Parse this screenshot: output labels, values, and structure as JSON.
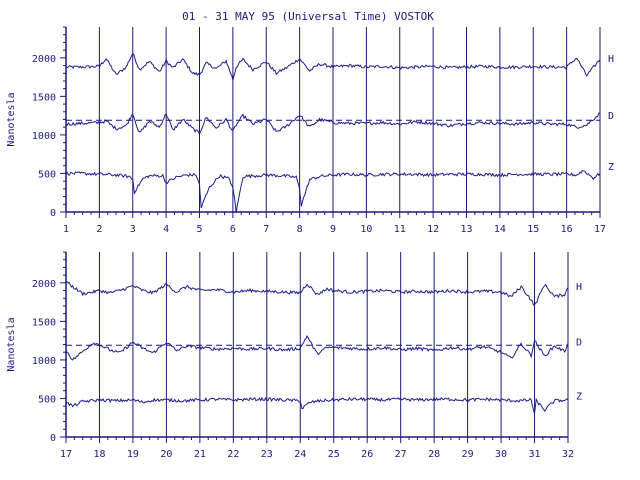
{
  "title": "01 - 31 MAY 95 (Universal Time) VOSTOK",
  "colors": {
    "ink": "#1a1a7a",
    "trace": "#1c1c8c",
    "background": "#ffffff"
  },
  "chart_data": [
    {
      "type": "line",
      "panel": "top",
      "ylabel": "Nanotesla",
      "ylim": [
        0,
        2400
      ],
      "y_ticks": [
        "0",
        "500",
        "1000",
        "1500",
        "2000"
      ],
      "y_tick_values": [
        0,
        500,
        1000,
        1500,
        2000
      ],
      "xlim": [
        1,
        17
      ],
      "x_ticks": [
        "1",
        "2",
        "3",
        "4",
        "5",
        "6",
        "7",
        "8",
        "9",
        "10",
        "11",
        "12",
        "13",
        "14",
        "15",
        "16",
        "17"
      ],
      "grid": "vertical lines at each day",
      "reference_line_D": 1190,
      "series": [
        {
          "name": "H",
          "x": [
            1,
            1.5,
            2,
            2.2,
            2.5,
            2.8,
            3,
            3.2,
            3.5,
            3.8,
            4,
            4.2,
            4.5,
            4.8,
            5,
            5.2,
            5.5,
            5.8,
            6,
            6.1,
            6.3,
            6.6,
            7,
            7.3,
            7.6,
            8,
            8.3,
            8.6,
            9,
            9.5,
            10,
            10.5,
            11,
            11.5,
            12,
            12.5,
            13,
            13.5,
            14,
            14.5,
            15,
            15.5,
            16,
            16.3,
            16.6,
            17
          ],
          "values": [
            1880,
            1880,
            1890,
            1990,
            1780,
            1880,
            2060,
            1850,
            1950,
            1820,
            1960,
            1870,
            1980,
            1800,
            1780,
            1930,
            1860,
            1960,
            1720,
            1880,
            1980,
            1850,
            1950,
            1800,
            1870,
            1990,
            1830,
            1920,
            1880,
            1900,
            1880,
            1890,
            1870,
            1880,
            1890,
            1870,
            1880,
            1890,
            1880,
            1880,
            1890,
            1880,
            1880,
            2000,
            1770,
            1980
          ]
        },
        {
          "name": "D",
          "x": [
            1,
            1.5,
            2,
            2.2,
            2.5,
            2.8,
            3,
            3.2,
            3.5,
            3.8,
            4,
            4.2,
            4.5,
            4.8,
            5,
            5.2,
            5.5,
            5.8,
            6,
            6.1,
            6.3,
            6.6,
            7,
            7.3,
            7.6,
            8,
            8.3,
            8.6,
            9,
            9.5,
            10,
            10.5,
            11,
            11.5,
            12,
            12.5,
            13,
            13.5,
            14,
            14.5,
            15,
            15.5,
            16,
            16.3,
            16.6,
            17
          ],
          "values": [
            1140,
            1150,
            1160,
            1180,
            1080,
            1120,
            1280,
            1020,
            1180,
            1100,
            1280,
            1060,
            1200,
            1080,
            1020,
            1230,
            1090,
            1200,
            1040,
            1130,
            1250,
            1140,
            1200,
            1040,
            1110,
            1260,
            1100,
            1200,
            1160,
            1150,
            1150,
            1160,
            1140,
            1170,
            1150,
            1120,
            1150,
            1160,
            1150,
            1140,
            1160,
            1140,
            1140,
            1100,
            1130,
            1280
          ]
        },
        {
          "name": "Z",
          "x": [
            1,
            1.5,
            2,
            2.5,
            2.9,
            3,
            3.05,
            3.3,
            3.5,
            3.9,
            4,
            4.3,
            4.6,
            4.9,
            5,
            5.05,
            5.3,
            5.6,
            5.9,
            6,
            6.05,
            6.1,
            6.3,
            6.6,
            7,
            7.5,
            7.9,
            8,
            8.05,
            8.3,
            8.6,
            9,
            9.5,
            10,
            10.5,
            11,
            11.5,
            12,
            12.5,
            13,
            13.5,
            14,
            14.5,
            15,
            15.5,
            16,
            16.3,
            16.5,
            16.8,
            17
          ],
          "values": [
            500,
            500,
            490,
            480,
            460,
            420,
            260,
            430,
            470,
            470,
            380,
            450,
            480,
            480,
            350,
            60,
            320,
            470,
            430,
            300,
            180,
            0,
            460,
            470,
            480,
            470,
            450,
            300,
            90,
            420,
            460,
            480,
            490,
            480,
            490,
            490,
            490,
            480,
            490,
            490,
            490,
            480,
            490,
            490,
            490,
            490,
            480,
            540,
            440,
            500
          ]
        }
      ]
    },
    {
      "type": "line",
      "panel": "bottom",
      "ylabel": "Nanotesla",
      "ylim": [
        0,
        2400
      ],
      "y_ticks": [
        "0",
        "500",
        "1000",
        "1500",
        "2000"
      ],
      "y_tick_values": [
        0,
        500,
        1000,
        1500,
        2000
      ],
      "xlim": [
        17,
        32
      ],
      "x_ticks": [
        "17",
        "18",
        "19",
        "20",
        "21",
        "22",
        "23",
        "24",
        "25",
        "26",
        "27",
        "28",
        "29",
        "30",
        "31",
        "32"
      ],
      "grid": "vertical lines at each day",
      "reference_line_D": 1190,
      "series": [
        {
          "name": "H",
          "x": [
            17,
            17.2,
            17.5,
            17.8,
            18,
            18.3,
            18.6,
            19,
            19.3,
            19.6,
            20,
            20.3,
            20.6,
            21,
            21.5,
            22,
            22.5,
            23,
            23.5,
            24,
            24.2,
            24.5,
            24.8,
            25,
            25.5,
            26,
            26.5,
            27,
            27.5,
            28,
            28.5,
            29,
            29.5,
            30,
            30.3,
            30.6,
            30.9,
            31,
            31.3,
            31.6,
            31.9,
            32
          ],
          "values": [
            2020,
            1950,
            1860,
            1880,
            1900,
            1870,
            1900,
            1960,
            1900,
            1870,
            1980,
            1880,
            1950,
            1900,
            1910,
            1880,
            1900,
            1890,
            1880,
            1870,
            1990,
            1850,
            1920,
            1900,
            1880,
            1890,
            1900,
            1880,
            1890,
            1880,
            1900,
            1880,
            1890,
            1880,
            1820,
            1950,
            1780,
            1700,
            1980,
            1820,
            1850,
            1940
          ]
        },
        {
          "name": "D",
          "x": [
            17,
            17.2,
            17.5,
            17.8,
            18,
            18.3,
            18.6,
            19,
            19.3,
            19.6,
            20,
            20.3,
            20.6,
            21,
            21.5,
            22,
            22.5,
            23,
            23.5,
            24,
            24.2,
            24.5,
            24.8,
            25,
            25.5,
            26,
            26.5,
            27,
            27.5,
            28,
            28.5,
            29,
            29.5,
            30,
            30.3,
            30.6,
            30.9,
            31,
            31.3,
            31.6,
            31.9,
            32
          ],
          "values": [
            1130,
            1000,
            1110,
            1220,
            1200,
            1130,
            1090,
            1230,
            1150,
            1090,
            1230,
            1120,
            1180,
            1160,
            1140,
            1150,
            1140,
            1150,
            1130,
            1150,
            1310,
            1080,
            1160,
            1160,
            1150,
            1140,
            1160,
            1130,
            1150,
            1120,
            1160,
            1140,
            1170,
            1100,
            1020,
            1210,
            1060,
            1250,
            1050,
            1180,
            1110,
            1220
          ]
        },
        {
          "name": "Z",
          "x": [
            17,
            17.2,
            17.5,
            18,
            18.5,
            19,
            19.3,
            19.6,
            20,
            20.5,
            21,
            21.5,
            22,
            22.5,
            23,
            23.5,
            24,
            24.05,
            24.3,
            24.6,
            25,
            25.5,
            26,
            26.5,
            27,
            27.5,
            28,
            28.5,
            29,
            29.5,
            30,
            30.5,
            30.9,
            31,
            31.05,
            31.3,
            31.6,
            32
          ],
          "values": [
            450,
            400,
            460,
            480,
            470,
            480,
            450,
            480,
            480,
            470,
            480,
            490,
            480,
            490,
            490,
            480,
            470,
            370,
            450,
            470,
            480,
            490,
            490,
            480,
            490,
            480,
            490,
            490,
            480,
            490,
            480,
            470,
            480,
            300,
            470,
            350,
            470,
            480
          ]
        }
      ]
    }
  ]
}
